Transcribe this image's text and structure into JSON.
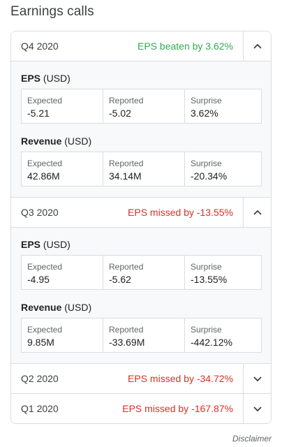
{
  "title": "Earnings calls",
  "disclaimer": "Disclaimer",
  "colors": {
    "beat": "#34a853",
    "miss": "#d93025"
  },
  "quarters": [
    {
      "name": "Q4 2020",
      "status": "EPS beaten by 3.62%",
      "expanded": true,
      "eps": {
        "heading": "EPS",
        "unit": "(USD)",
        "labels": [
          "Expected",
          "Reported",
          "Surprise"
        ],
        "values": [
          "-5.21",
          "-5.02",
          "3.62%"
        ]
      },
      "revenue": {
        "heading": "Revenue",
        "unit": "(USD)",
        "labels": [
          "Expected",
          "Reported",
          "Surprise"
        ],
        "values": [
          "42.86M",
          "34.14M",
          "-20.34%"
        ]
      }
    },
    {
      "name": "Q3 2020",
      "status": "EPS missed by -13.55%",
      "expanded": true,
      "eps": {
        "heading": "EPS",
        "unit": "(USD)",
        "labels": [
          "Expected",
          "Reported",
          "Surprise"
        ],
        "values": [
          "-4.95",
          "-5.62",
          "-13.55%"
        ]
      },
      "revenue": {
        "heading": "Revenue",
        "unit": "(USD)",
        "labels": [
          "Expected",
          "Reported",
          "Surprise"
        ],
        "values": [
          "9.85M",
          "-33.69M",
          "-442.12%"
        ]
      }
    },
    {
      "name": "Q2 2020",
      "status": "EPS missed by -34.72%",
      "expanded": false
    },
    {
      "name": "Q1 2020",
      "status": "EPS missed by -167.87%",
      "expanded": false
    }
  ]
}
